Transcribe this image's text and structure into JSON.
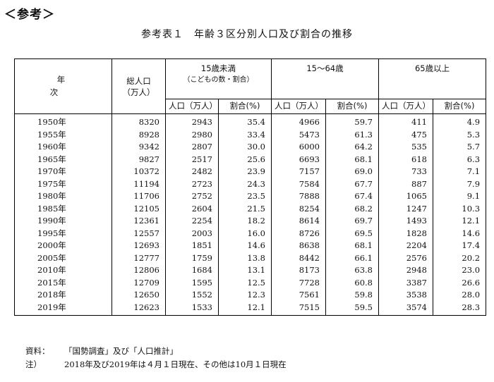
{
  "heading": "＜参考＞",
  "title": "参考表１　年齢３区分別人口及び割合の推移",
  "columns": {
    "year": "年　次",
    "total_line1": "総人口",
    "total_line2": "（万人）",
    "group1_line1": "15歳未満",
    "group1_line2": "（こどもの数・割合）",
    "group2": "15～64歳",
    "group3": "65歳以上",
    "pop": "人口（万人）",
    "pct": "割合(%)"
  },
  "rows": [
    [
      "1950年",
      "8320",
      "2943",
      "35.4",
      "4966",
      "59.7",
      "411",
      "4.9"
    ],
    [
      "1955年",
      "8928",
      "2980",
      "33.4",
      "5473",
      "61.3",
      "475",
      "5.3"
    ],
    [
      "1960年",
      "9342",
      "2807",
      "30.0",
      "6000",
      "64.2",
      "535",
      "5.7"
    ],
    [
      "1965年",
      "9827",
      "2517",
      "25.6",
      "6693",
      "68.1",
      "618",
      "6.3"
    ],
    [
      "1970年",
      "10372",
      "2482",
      "23.9",
      "7157",
      "69.0",
      "733",
      "7.1"
    ],
    [
      "1975年",
      "11194",
      "2723",
      "24.3",
      "7584",
      "67.7",
      "887",
      "7.9"
    ],
    [
      "1980年",
      "11706",
      "2752",
      "23.5",
      "7888",
      "67.4",
      "1065",
      "9.1"
    ],
    [
      "1985年",
      "12105",
      "2604",
      "21.5",
      "8254",
      "68.2",
      "1247",
      "10.3"
    ],
    [
      "1990年",
      "12361",
      "2254",
      "18.2",
      "8614",
      "69.7",
      "1493",
      "12.1"
    ],
    [
      "1995年",
      "12557",
      "2003",
      "16.0",
      "8726",
      "69.5",
      "1828",
      "14.6"
    ],
    [
      "2000年",
      "12693",
      "1851",
      "14.6",
      "8638",
      "68.1",
      "2204",
      "17.4"
    ],
    [
      "2005年",
      "12777",
      "1759",
      "13.8",
      "8442",
      "66.1",
      "2576",
      "20.2"
    ],
    [
      "2010年",
      "12806",
      "1684",
      "13.1",
      "8173",
      "63.8",
      "2948",
      "23.0"
    ],
    [
      "2015年",
      "12709",
      "1595",
      "12.5",
      "7728",
      "60.8",
      "3387",
      "26.6"
    ],
    [
      "2018年",
      "12650",
      "1552",
      "12.3",
      "7561",
      "59.8",
      "3538",
      "28.0"
    ],
    [
      "2019年",
      "12623",
      "1533",
      "12.1",
      "7515",
      "59.5",
      "3574",
      "28.3"
    ]
  ],
  "notes": {
    "source_label": "資料：",
    "source_text": "「国勢調査」及び「人口推計」",
    "note_label": "注）",
    "note_text": "2018年及び2019年は４月１日現在、その他は10月１日現在"
  }
}
